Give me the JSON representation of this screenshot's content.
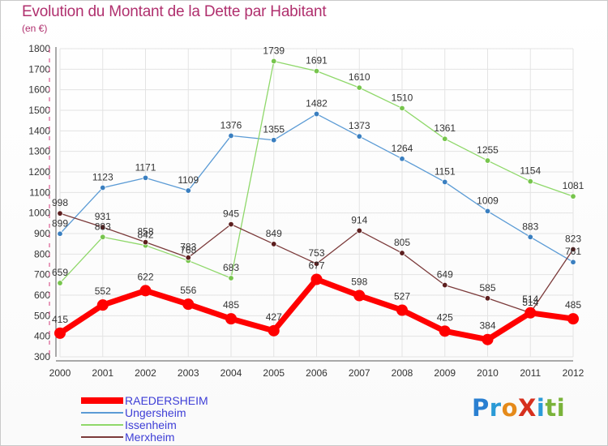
{
  "title": "Evolution du Montant de la Dette par Habitant",
  "subtitle": "(en €)",
  "brand": {
    "text": "ProXiti",
    "letters": [
      {
        "ch": "P",
        "color": "#2a7fd1"
      },
      {
        "ch": "r",
        "color": "#2a9ad6"
      },
      {
        "ch": "o",
        "color": "#e58a1a"
      },
      {
        "ch": "X",
        "color": "#d6301e"
      },
      {
        "ch": "i",
        "color": "#2b9bd8"
      },
      {
        "ch": "t",
        "color": "#7ab33a"
      },
      {
        "ch": "i",
        "color": "#7ab33a"
      }
    ]
  },
  "chart_data": {
    "type": "line",
    "x": [
      "2000",
      "2001",
      "2002",
      "2003",
      "2004",
      "2005",
      "2006",
      "2007",
      "2008",
      "2009",
      "2010",
      "2011",
      "2012"
    ],
    "ylim": [
      300,
      1800
    ],
    "yticks": [
      300,
      400,
      500,
      600,
      700,
      800,
      900,
      1000,
      1100,
      1200,
      1300,
      1400,
      1500,
      1600,
      1700,
      1800
    ],
    "grid": true,
    "legend": "bottom-left",
    "series": [
      {
        "name": "RAEDERSHEIM",
        "color": "#ff0000",
        "emphasis": true,
        "values": [
          415,
          552,
          622,
          556,
          485,
          427,
          677,
          598,
          527,
          425,
          384,
          514,
          485
        ]
      },
      {
        "name": "Ungersheim",
        "color": "#5b9bd5",
        "marker": "#3a7fc0",
        "values": [
          899,
          1123,
          1171,
          1109,
          1376,
          1355,
          1482,
          1373,
          1264,
          1151,
          1009,
          883,
          761
        ]
      },
      {
        "name": "Issenheim",
        "color": "#8fd86a",
        "marker": "#77c54d",
        "values": [
          659,
          883,
          842,
          768,
          683,
          1739,
          1691,
          1610,
          1510,
          1361,
          1255,
          1154,
          1081
        ]
      },
      {
        "name": "Merxheim",
        "color": "#7b3a3a",
        "marker": "#5c1e1e",
        "values": [
          998,
          931,
          858,
          783,
          945,
          849,
          753,
          914,
          805,
          649,
          585,
          514,
          823
        ]
      }
    ],
    "legend_label_color": "#3d3dd6"
  }
}
